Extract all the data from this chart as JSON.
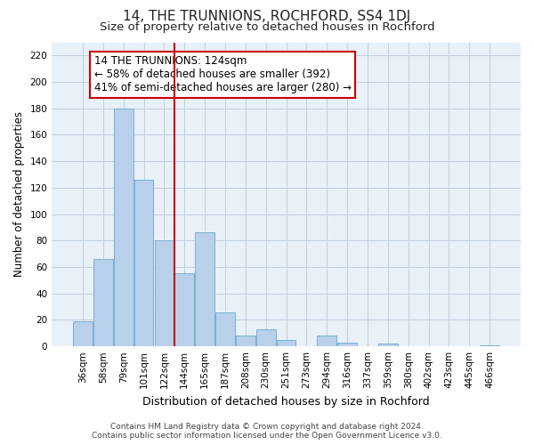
{
  "title": "14, THE TRUNNIONS, ROCHFORD, SS4 1DJ",
  "subtitle": "Size of property relative to detached houses in Rochford",
  "xlabel": "Distribution of detached houses by size in Rochford",
  "ylabel": "Number of detached properties",
  "bar_labels": [
    "36sqm",
    "58sqm",
    "79sqm",
    "101sqm",
    "122sqm",
    "144sqm",
    "165sqm",
    "187sqm",
    "208sqm",
    "230sqm",
    "251sqm",
    "273sqm",
    "294sqm",
    "316sqm",
    "337sqm",
    "359sqm",
    "380sqm",
    "402sqm",
    "423sqm",
    "445sqm",
    "466sqm"
  ],
  "bar_values": [
    19,
    66,
    180,
    126,
    80,
    55,
    86,
    26,
    8,
    13,
    5,
    0,
    8,
    3,
    0,
    2,
    0,
    0,
    0,
    0,
    1
  ],
  "bar_color": "#b8d0ea",
  "bar_edge_color": "#7aafd4",
  "vline_color": "#cc0000",
  "annotation_lines": [
    "14 THE TRUNNIONS: 124sqm",
    "← 58% of detached houses are smaller (392)",
    "41% of semi-detached houses are larger (280) →"
  ],
  "ylim": [
    0,
    230
  ],
  "yticks": [
    0,
    20,
    40,
    60,
    80,
    100,
    120,
    140,
    160,
    180,
    200,
    220
  ],
  "footer_line1": "Contains HM Land Registry data © Crown copyright and database right 2024.",
  "footer_line2": "Contains public sector information licensed under the Open Government Licence v3.0.",
  "background_color": "#ffffff",
  "plot_bg_color": "#e8f0f8",
  "grid_color": "#c0d0e0",
  "title_fontsize": 11,
  "subtitle_fontsize": 9.5,
  "xlabel_fontsize": 9,
  "ylabel_fontsize": 8.5,
  "tick_fontsize": 7.5,
  "annotation_fontsize": 8.5,
  "footer_fontsize": 6.5
}
